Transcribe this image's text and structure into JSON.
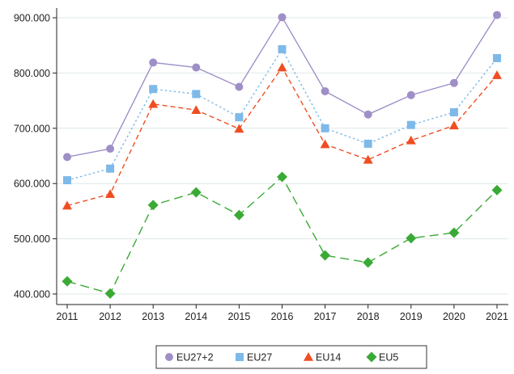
{
  "chart_data": {
    "type": "line",
    "title": "",
    "xlabel": "",
    "ylabel": "",
    "x": [
      "2011",
      "2012",
      "2013",
      "2014",
      "2015",
      "2016",
      "2017",
      "2018",
      "2019",
      "2020",
      "2021"
    ],
    "ylim": [
      380000,
      920000
    ],
    "yticks": [
      400000,
      500000,
      600000,
      700000,
      800000,
      900000
    ],
    "ytick_labels": [
      "400.000",
      "500.000",
      "600.000",
      "700.000",
      "800.000",
      "900.000"
    ],
    "grid": "horizontal",
    "legend_position": "bottom",
    "series": [
      {
        "name": "EU27+2",
        "values": [
          648000,
          663000,
          819000,
          810000,
          775000,
          901000,
          767000,
          725000,
          760000,
          782000,
          905000
        ],
        "color": "#9f8fc7",
        "marker": "circle",
        "line_style": "solid"
      },
      {
        "name": "EU27",
        "values": [
          606000,
          627000,
          771000,
          762000,
          720000,
          843000,
          700000,
          672000,
          706000,
          729000,
          827000
        ],
        "color": "#7eb9e8",
        "marker": "square",
        "line_style": "dotted"
      },
      {
        "name": "EU14",
        "values": [
          560000,
          581000,
          744000,
          733000,
          699000,
          810000,
          671000,
          643000,
          678000,
          705000,
          796000
        ],
        "color": "#f04d22",
        "marker": "triangle",
        "line_style": "dashed"
      },
      {
        "name": "EU5",
        "values": [
          423000,
          401000,
          561000,
          584000,
          543000,
          612000,
          470000,
          457000,
          501000,
          511000,
          588000
        ],
        "color": "#3aaa35",
        "marker": "diamond",
        "line_style": "long-dashed"
      }
    ]
  }
}
